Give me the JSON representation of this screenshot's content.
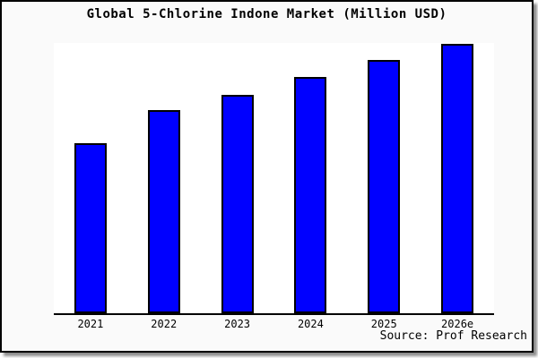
{
  "frame": {
    "background": "#fafafa",
    "border_color": "#000000"
  },
  "chart_data": {
    "type": "bar",
    "title": "Global 5-Chlorine Indone Market (Million USD)",
    "categories": [
      "2021",
      "2022",
      "2023",
      "2024",
      "2025",
      "2026e"
    ],
    "values": [
      62.9,
      75.2,
      80.8,
      87.4,
      93.7,
      99.7
    ],
    "values_unit": "percent of plot height (no y-axis scale shown in chart)",
    "xlabel": "",
    "ylabel": "",
    "y_axis_visible": false,
    "grid": false,
    "legend": false,
    "bar_color": "#0000ff",
    "bar_border_color": "#000000",
    "plot_background": "#ffffff",
    "axis_line_color": "#000000"
  },
  "source": {
    "label": "Source: Prof Research"
  }
}
